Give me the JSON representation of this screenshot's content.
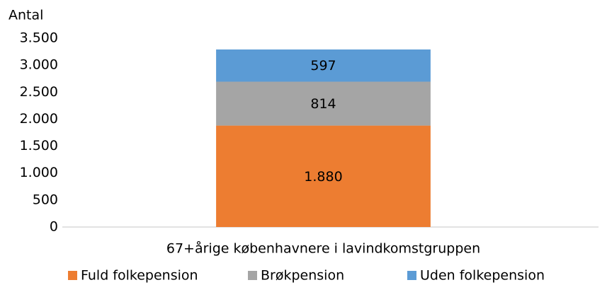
{
  "chart_data": {
    "type": "stacked_bar",
    "y_label": "Antal",
    "categories": [
      "67+årige københavnere i lavindkomstgruppen"
    ],
    "series": [
      {
        "name": "Fuld folkepension",
        "color": "#ed7d31",
        "values": [
          1880
        ],
        "value_labels": [
          "1.880"
        ]
      },
      {
        "name": "Brøkpension",
        "color": "#a5a5a5",
        "values": [
          814
        ]
      },
      {
        "name": "Uden folkepension",
        "color": "#5b9bd5",
        "values": [
          597
        ]
      }
    ],
    "ylim": [
      0,
      3500
    ],
    "yticks": [
      0,
      500,
      {
        "value": 1000,
        "label": "1.000"
      },
      {
        "value": 1500,
        "label": "1.500"
      },
      {
        "value": 2000,
        "label": "2.000"
      },
      {
        "value": 2500,
        "label": "2.500"
      },
      {
        "value": 3000,
        "label": "3.000"
      },
      {
        "value": 3500,
        "label": "3.500"
      }
    ],
    "grid": false,
    "legend": "bottom"
  }
}
